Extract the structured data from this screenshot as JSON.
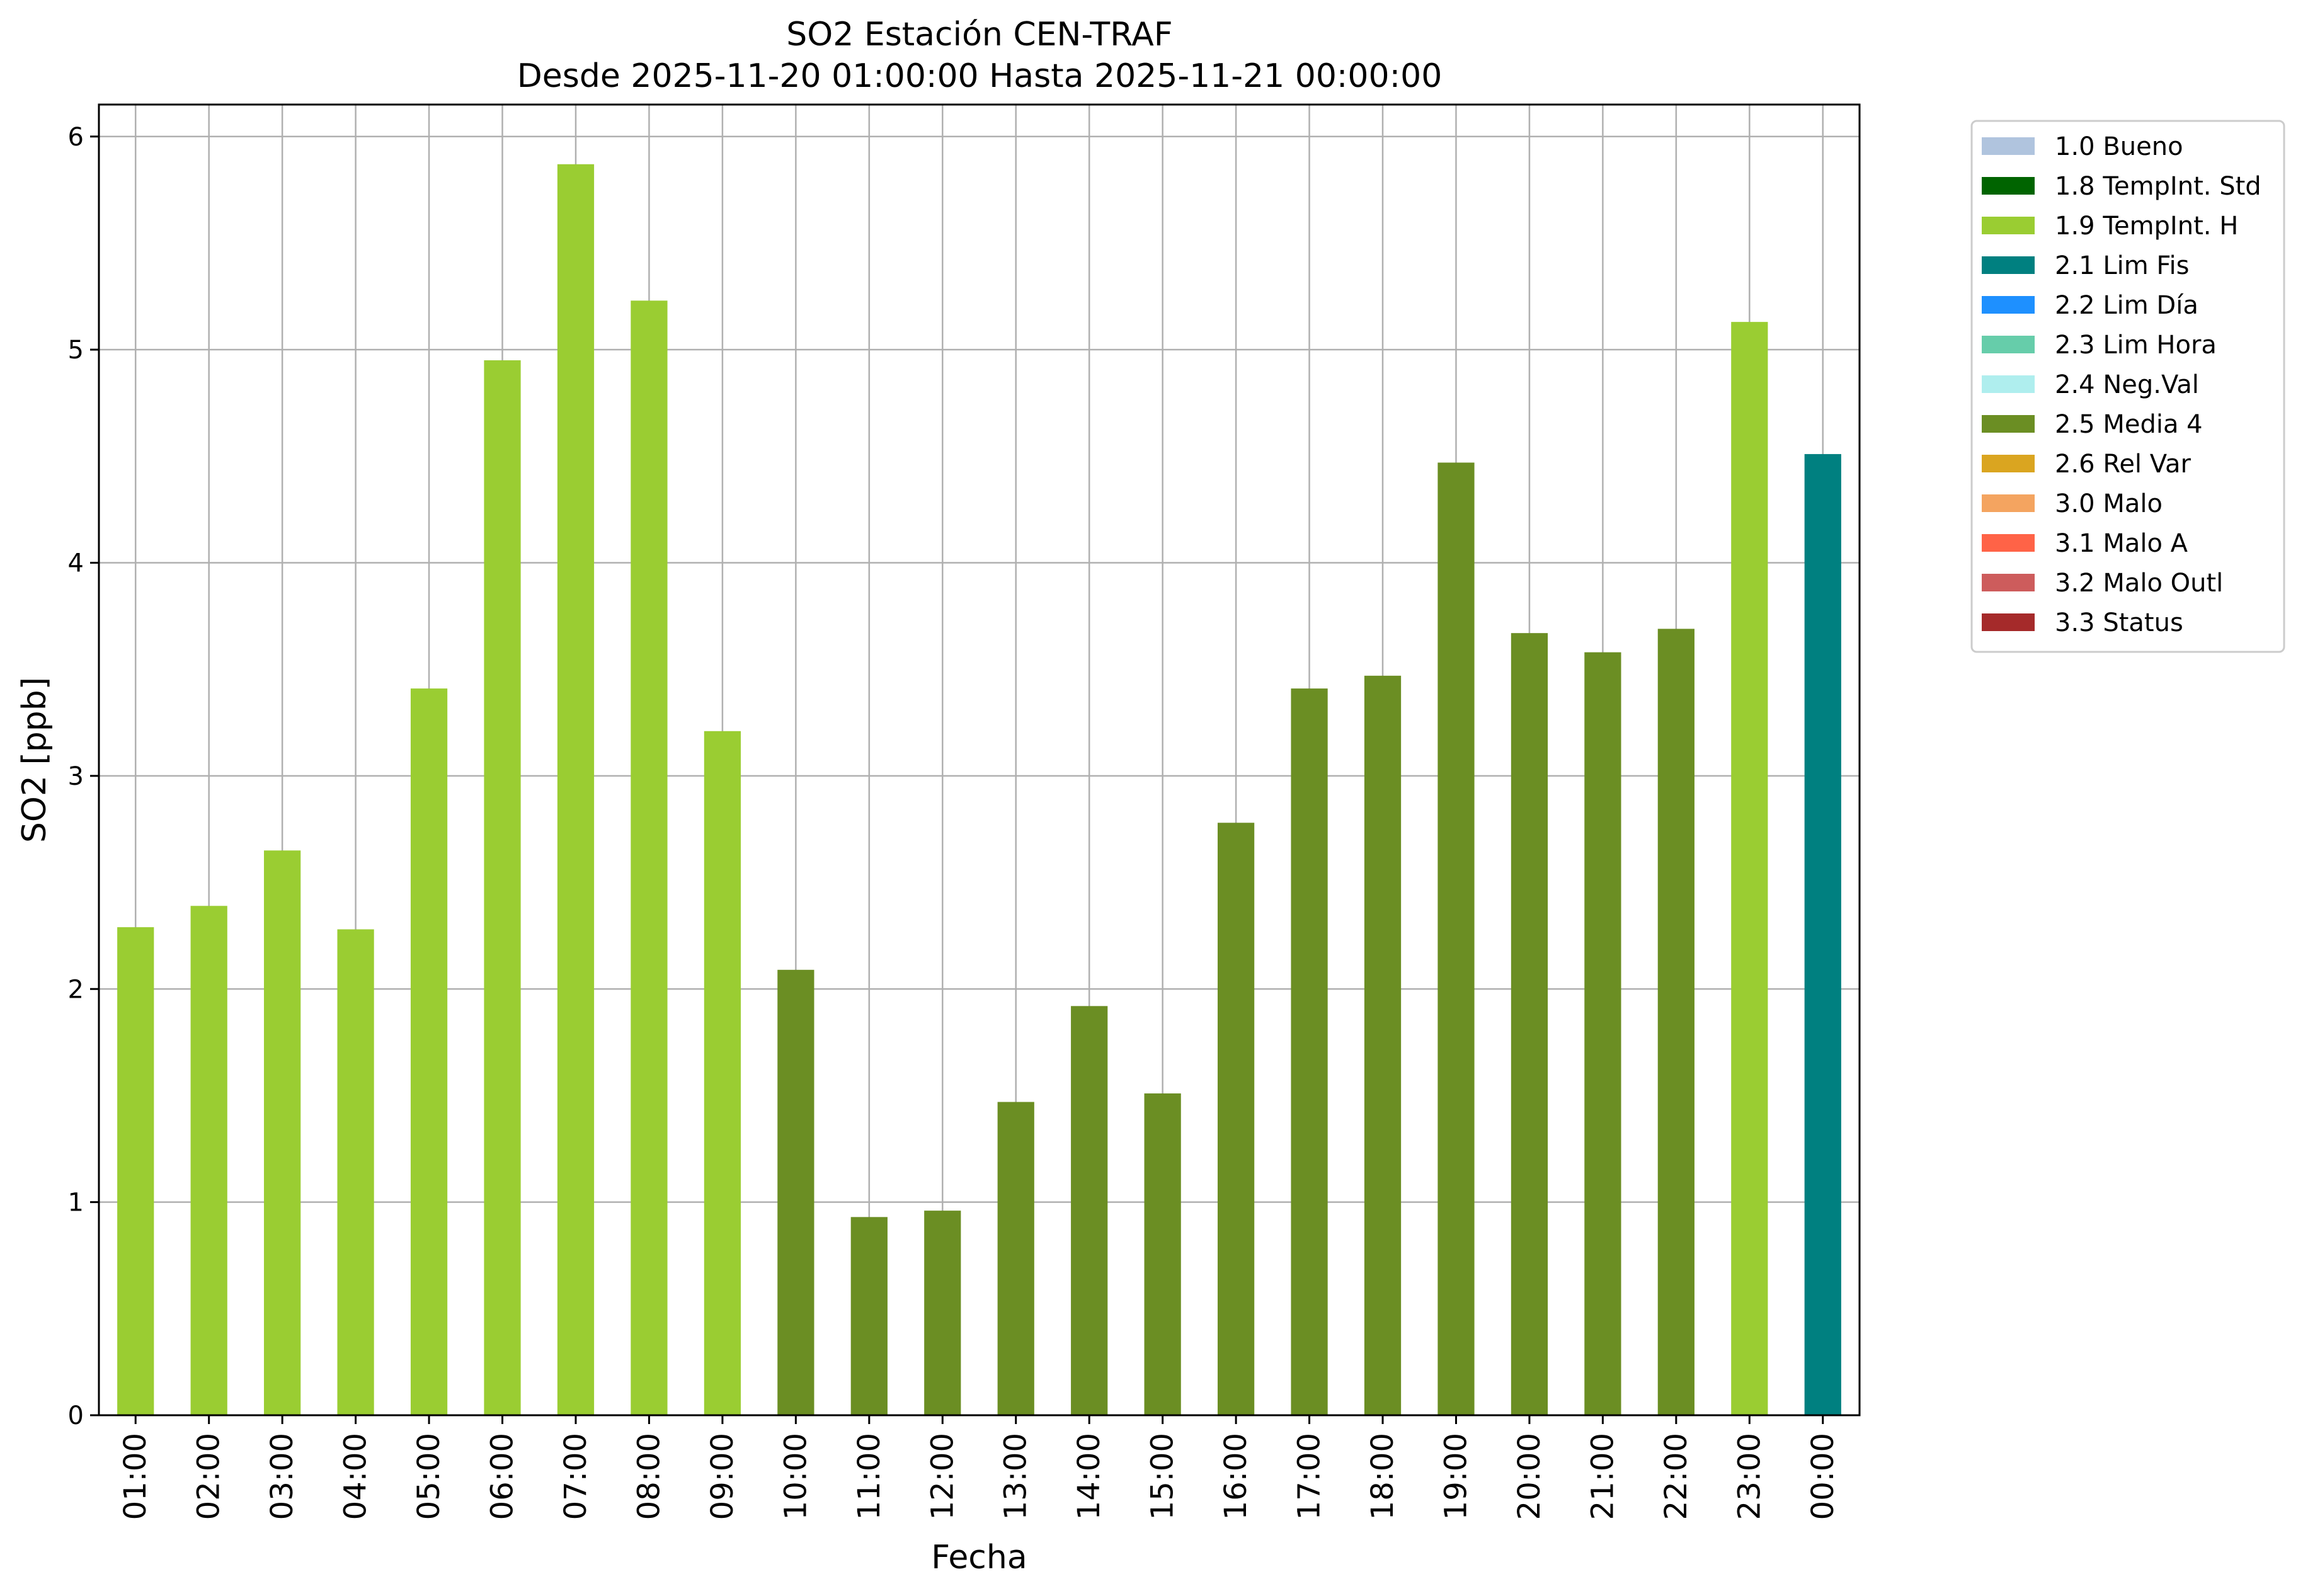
{
  "chart_data": {
    "type": "bar",
    "title": "SO2 Estación CEN-TRAF",
    "subtitle": "Desde 2025-11-20 01:00:00 Hasta 2025-11-21 00:00:00",
    "xlabel": "Fecha",
    "ylabel": "SO2 [ppb]",
    "ylim": [
      0,
      6.15
    ],
    "yticks": [
      "0",
      "1",
      "2",
      "3",
      "4",
      "5",
      "6"
    ],
    "grid": true,
    "legend_position": "outside-top-right",
    "categories": [
      "01:00",
      "02:00",
      "03:00",
      "04:00",
      "05:00",
      "06:00",
      "07:00",
      "08:00",
      "09:00",
      "10:00",
      "11:00",
      "12:00",
      "13:00",
      "14:00",
      "15:00",
      "16:00",
      "17:00",
      "18:00",
      "19:00",
      "20:00",
      "21:00",
      "22:00",
      "23:00",
      "00:00"
    ],
    "values": [
      2.29,
      2.39,
      2.65,
      2.28,
      3.41,
      4.95,
      5.87,
      5.23,
      3.21,
      2.09,
      0.93,
      0.96,
      1.47,
      1.92,
      1.51,
      2.78,
      3.41,
      3.47,
      4.47,
      3.67,
      3.58,
      3.69,
      5.13,
      4.51
    ],
    "flags": [
      "1.9 TempInt. H",
      "1.9 TempInt. H",
      "1.9 TempInt. H",
      "1.9 TempInt. H",
      "1.9 TempInt. H",
      "1.9 TempInt. H",
      "1.9 TempInt. H",
      "1.9 TempInt. H",
      "1.9 TempInt. H",
      "2.5 Media 4",
      "2.5 Media 4",
      "2.5 Media 4",
      "2.5 Media 4",
      "2.5 Media 4",
      "2.5 Media 4",
      "2.5 Media 4",
      "2.5 Media 4",
      "2.5 Media 4",
      "2.5 Media 4",
      "2.5 Media 4",
      "2.5 Media 4",
      "2.5 Media 4",
      "1.9 TempInt. H",
      "2.1 Lim Fis"
    ],
    "legend": [
      {
        "label": "1.0 Bueno",
        "color": "#b0c4de"
      },
      {
        "label": "1.8 TempInt. Std",
        "color": "#006400"
      },
      {
        "label": "1.9 TempInt. H",
        "color": "#9acd32"
      },
      {
        "label": "2.1 Lim Fis",
        "color": "#008080"
      },
      {
        "label": "2.2 Lim Día",
        "color": "#1e90ff"
      },
      {
        "label": "2.3 Lim Hora",
        "color": "#66cdaa"
      },
      {
        "label": "2.4 Neg.Val",
        "color": "#afeeee"
      },
      {
        "label": "2.5 Media 4",
        "color": "#6b8e23"
      },
      {
        "label": "2.6 Rel Var",
        "color": "#daa520"
      },
      {
        "label": "3.0 Malo",
        "color": "#f4a460"
      },
      {
        "label": "3.1 Malo A",
        "color": "#ff6347"
      },
      {
        "label": "3.2 Malo Outl",
        "color": "#cd5c5c"
      },
      {
        "label": "3.3 Status",
        "color": "#a52a2a"
      }
    ]
  }
}
